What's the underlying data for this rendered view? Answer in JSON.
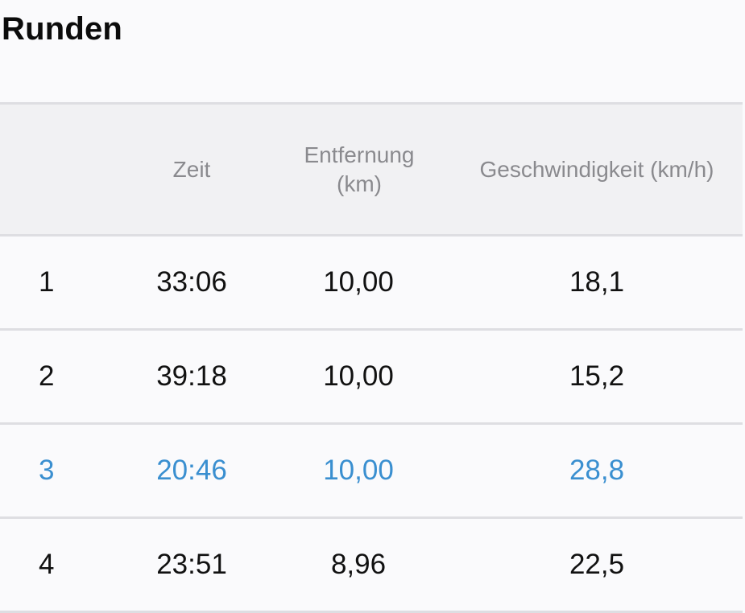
{
  "page": {
    "title": "Runden"
  },
  "table": {
    "headers": {
      "number": "",
      "time": "Zeit",
      "distance_line1": "Entfernung",
      "distance_line2": "(km)",
      "speed": "Geschwindigkeit (km/h)"
    },
    "rows": [
      {
        "number": "1",
        "time": "33:06",
        "distance": "10,00",
        "speed": "18,1",
        "highlighted": false
      },
      {
        "number": "2",
        "time": "39:18",
        "distance": "10,00",
        "speed": "15,2",
        "highlighted": false
      },
      {
        "number": "3",
        "time": "20:46",
        "distance": "10,00",
        "speed": "28,8",
        "highlighted": true
      },
      {
        "number": "4",
        "time": "23:51",
        "distance": "8,96",
        "speed": "22,5",
        "highlighted": false
      }
    ]
  },
  "colors": {
    "highlight": "#3a8fd0",
    "header_text": "#8a8a8e",
    "divider": "#dedee2",
    "header_background": "#f1f1f3",
    "page_background": "#fafafc"
  }
}
